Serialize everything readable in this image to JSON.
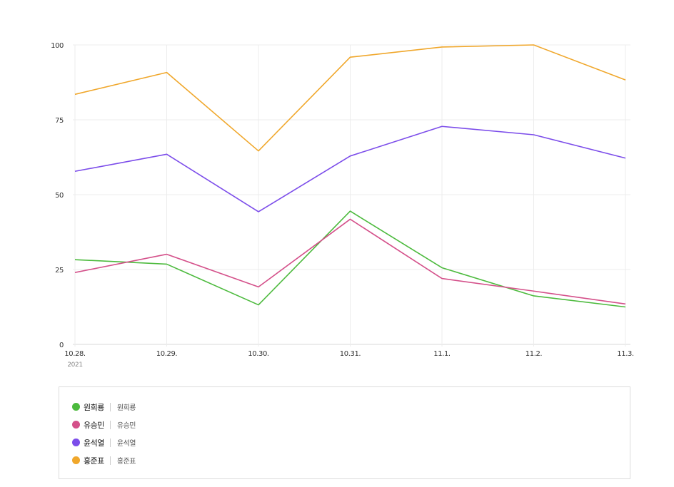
{
  "chart_data": {
    "type": "line",
    "categories": [
      "10.28.",
      "10.29.",
      "10.30.",
      "10.31.",
      "11.1.",
      "11.2.",
      "11.3."
    ],
    "year_label": "2021",
    "ylim": [
      0,
      100
    ],
    "yticks": [
      0,
      25,
      50,
      75,
      100
    ],
    "ytick_labels": [
      "0",
      "25",
      "50",
      "75",
      "100"
    ],
    "grid": true,
    "title": "",
    "xlabel": "",
    "ylabel": "",
    "series": [
      {
        "name": "원희룡",
        "sub": "원희룡",
        "color": "#4cba3d",
        "values": [
          28.3,
          26.8,
          13.2,
          44.5,
          25.6,
          16.2,
          12.5
        ]
      },
      {
        "name": "유승민",
        "sub": "유승민",
        "color": "#d4508a",
        "values": [
          24.0,
          30.1,
          19.2,
          41.8,
          22.0,
          17.8,
          13.5
        ]
      },
      {
        "name": "윤석열",
        "sub": "윤석열",
        "color": "#7c4dea",
        "values": [
          57.8,
          63.5,
          44.3,
          62.9,
          72.8,
          70.0,
          62.2
        ]
      },
      {
        "name": "홍준표",
        "sub": "홍준표",
        "color": "#f0a72b",
        "values": [
          83.5,
          90.8,
          64.6,
          95.9,
          99.3,
          100.0,
          88.3
        ]
      }
    ]
  }
}
